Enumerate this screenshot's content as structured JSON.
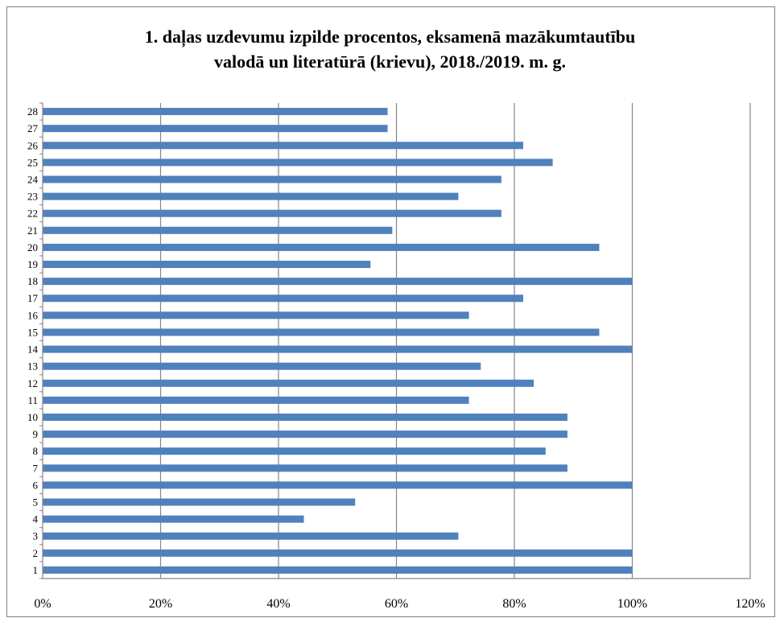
{
  "chart_data": {
    "type": "bar",
    "orientation": "horizontal",
    "title_lines": [
      "1. daļas uzdevumu  izpilde procentos, eksamenā  mazākumtautību",
      "valodā un literatūrā  (krievu), 2018./2019. m. g."
    ],
    "categories": [
      "1",
      "2",
      "3",
      "4",
      "5",
      "6",
      "7",
      "8",
      "9",
      "10",
      "11",
      "12",
      "13",
      "14",
      "15",
      "16",
      "17",
      "18",
      "19",
      "20",
      "21",
      "22",
      "23",
      "24",
      "25",
      "26",
      "27",
      "28"
    ],
    "values": [
      100,
      100,
      70.5,
      44.3,
      53,
      100,
      89,
      85.3,
      89,
      89,
      72.3,
      83.3,
      74.3,
      100,
      94.4,
      72.3,
      81.5,
      100,
      55.6,
      94.4,
      59.3,
      77.8,
      70.5,
      77.8,
      86.5,
      81.5,
      58.5,
      58.5
    ],
    "x_ticks": [
      "0%",
      "20%",
      "40%",
      "60%",
      "80%",
      "100%",
      "120%"
    ],
    "xlim": [
      0,
      120
    ],
    "xlabel": "",
    "ylabel": "",
    "grid": "vertical",
    "legend": "none",
    "bar_color": "#4f81bd",
    "grid_color": "#868686"
  }
}
